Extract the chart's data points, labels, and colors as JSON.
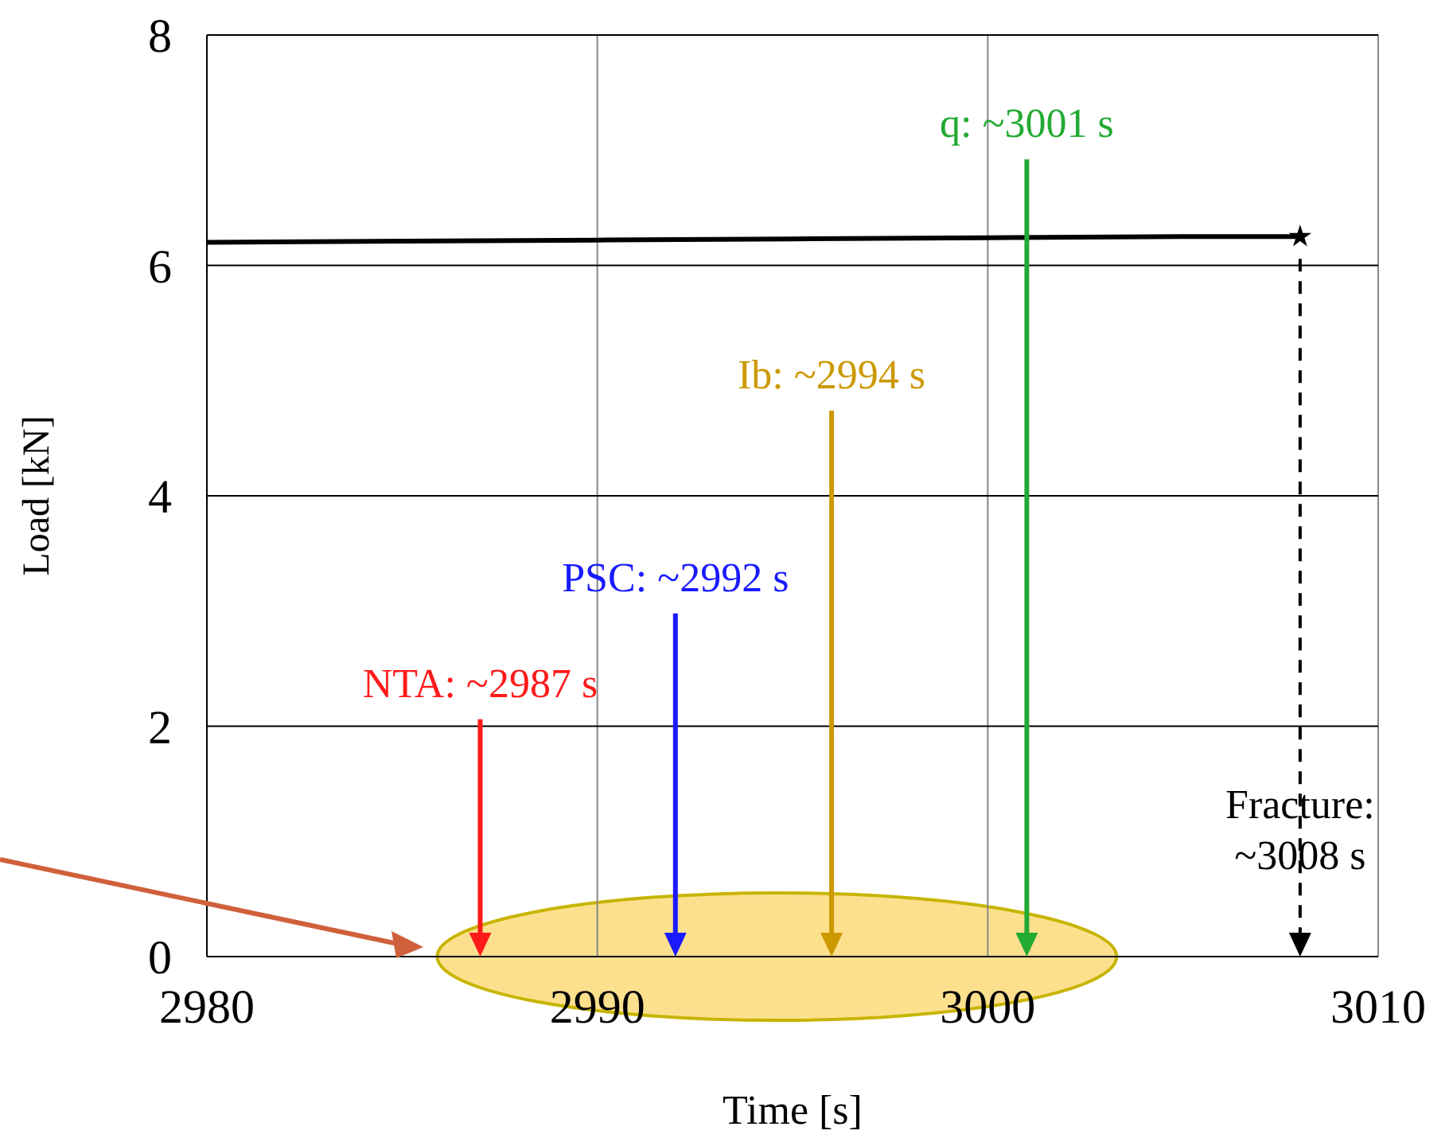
{
  "chart_data": {
    "type": "line",
    "xlabel": "Time [s]",
    "ylabel": "Load [kN]",
    "xlim": [
      2980,
      3010
    ],
    "xticks": [
      2980,
      2990,
      3000,
      3010
    ],
    "ylim": [
      0,
      8
    ],
    "yticks": [
      0,
      2,
      4,
      6,
      8
    ],
    "grid": true,
    "series": [
      {
        "type": "line",
        "color": "#000000",
        "marker": "none",
        "x": [
          2980,
          2985,
          2990,
          2995,
          3000,
          3005,
          3008
        ],
        "values": [
          6.2,
          6.21,
          6.22,
          6.23,
          6.24,
          6.25,
          6.25
        ]
      },
      {
        "type": "scatter",
        "color": "#000000",
        "marker": "star",
        "x": [
          3008
        ],
        "values": [
          6.25
        ]
      }
    ],
    "annotations": [
      "NTA: ~2987 s",
      "PSC: ~2992 s",
      "Ib: ~2994 s",
      "q: ~3001 s",
      "Fracture: ~3008 s"
    ]
  }
}
